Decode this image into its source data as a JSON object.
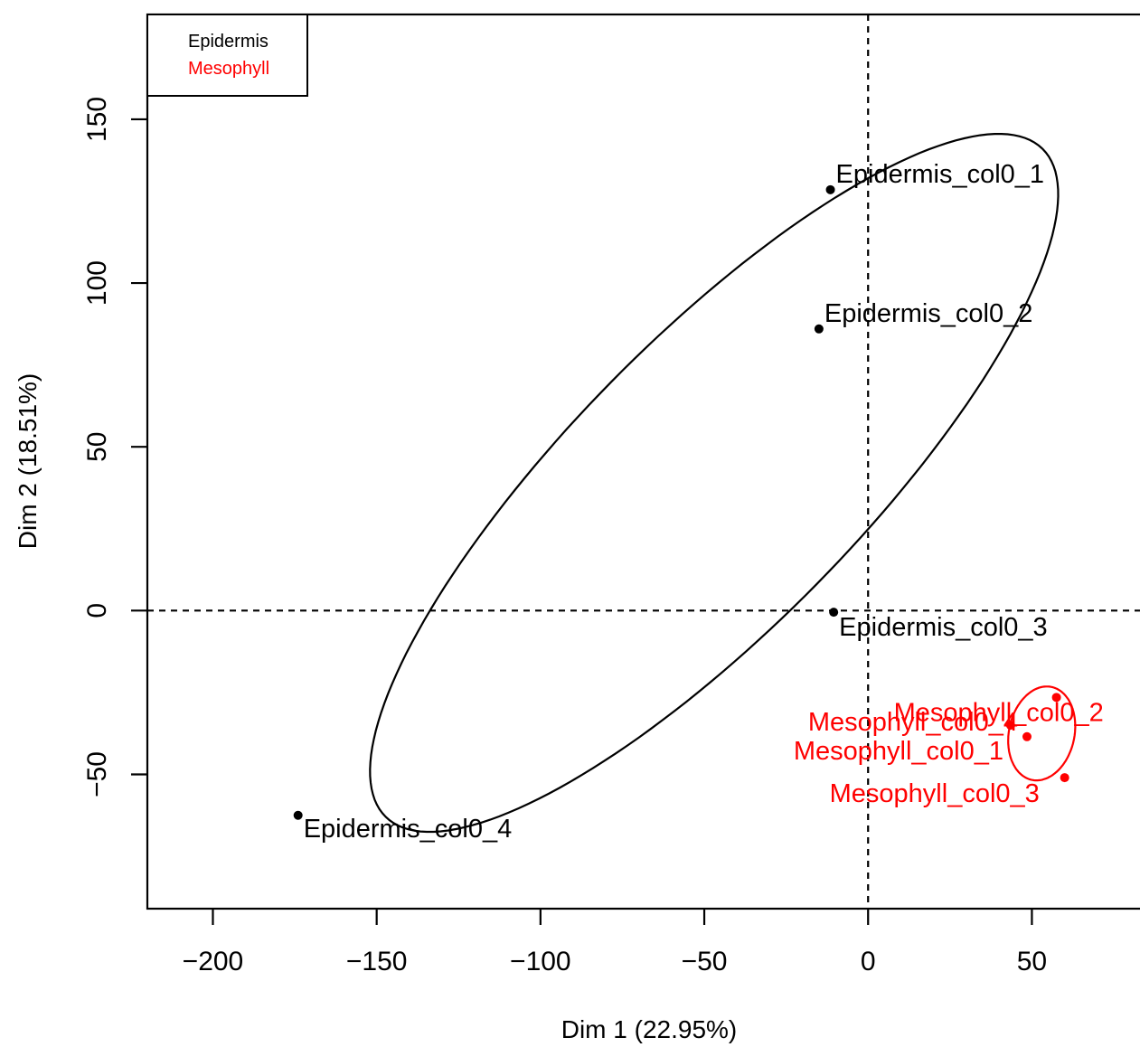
{
  "chart_data": {
    "type": "scatter",
    "xlabel": "Dim 1 (22.95%)",
    "ylabel": "Dim 2 (18.51%)",
    "xlim": [
      -220,
      83
    ],
    "ylim": [
      -91,
      182
    ],
    "xticks": [
      -200,
      -150,
      -100,
      -50,
      0,
      50
    ],
    "yticks": [
      -50,
      0,
      50,
      100,
      150
    ],
    "reference_lines": {
      "x": 0,
      "y": 0,
      "style": "dashed"
    },
    "legend": {
      "position": "top-left",
      "entries": [
        {
          "name": "Epidermis",
          "color": "#000000"
        },
        {
          "name": "Mesophyll",
          "color": "#ff0000"
        }
      ]
    },
    "series": [
      {
        "name": "Epidermis",
        "color": "#000000",
        "points": [
          {
            "label": "Epidermis_col0_1",
            "x": -11.5,
            "y": 128.5
          },
          {
            "label": "Epidermis_col0_2",
            "x": -15,
            "y": 86
          },
          {
            "label": "Epidermis_col0_3",
            "x": -10.5,
            "y": -0.5
          },
          {
            "label": "Epidermis_col0_4",
            "x": -174,
            "y": -62.5
          }
        ],
        "ellipse": {
          "cx": -47,
          "cy": 39,
          "rx": 143,
          "ry": 44,
          "angle_deg": 45.5
        }
      },
      {
        "name": "Mesophyll",
        "color": "#ff0000",
        "points": [
          {
            "label": "Mesophyll_col0_1",
            "x": 43.5,
            "y": -35
          },
          {
            "label": "Mesophyll_col0_2",
            "x": 57.5,
            "y": -26.5
          },
          {
            "label": "Mesophyll_col0_3",
            "x": 60,
            "y": -51
          },
          {
            "label": "Mesophyll_col0_4",
            "x": 48.5,
            "y": -38.5
          }
        ],
        "ellipse": {
          "cx": 53,
          "cy": -37.5,
          "rx": 14.5,
          "ry": 10,
          "angle_deg": 78
        }
      }
    ]
  }
}
